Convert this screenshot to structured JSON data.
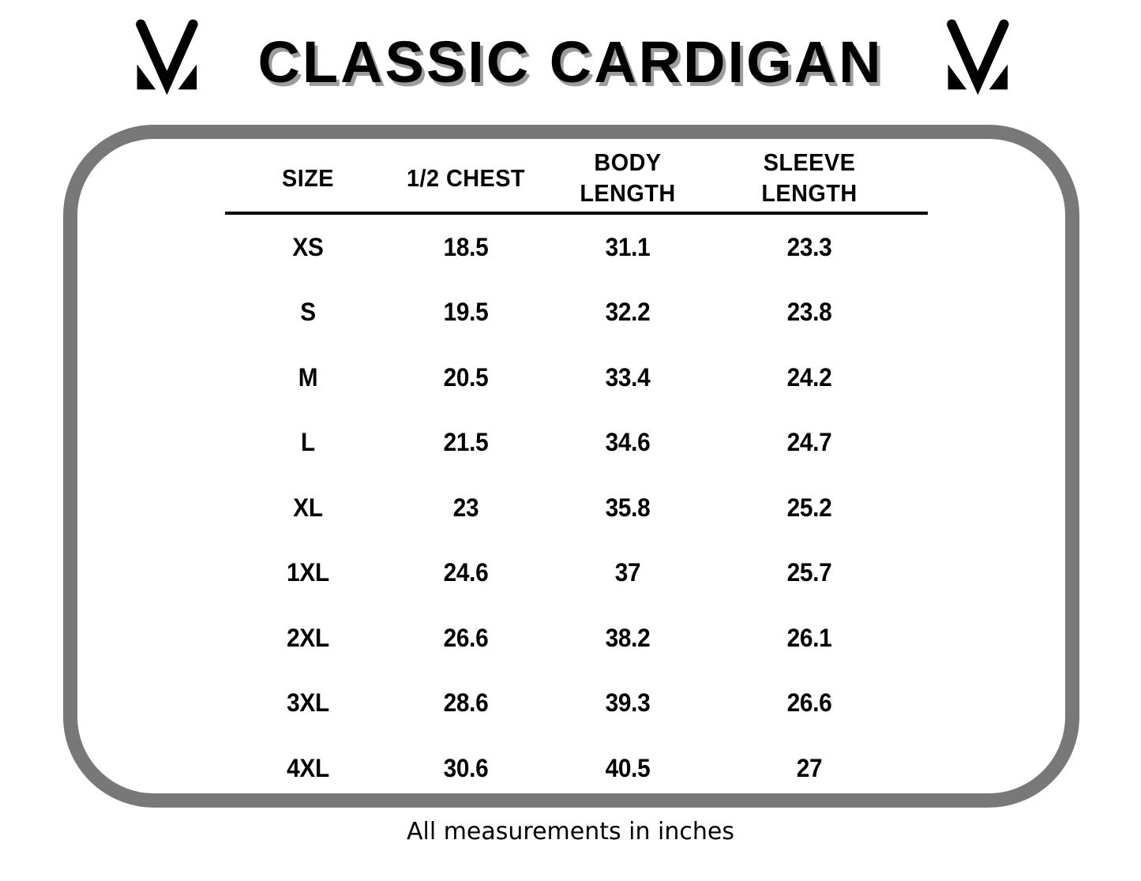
{
  "page": {
    "title": "CLASSIC CARDIGAN",
    "footer_note": "All measurements in inches"
  },
  "header": {
    "left_logo_icon": "mv-monogram",
    "right_logo_icon": "mv-monogram"
  },
  "chart_data": {
    "type": "table",
    "title": "CLASSIC CARDIGAN",
    "columns": [
      "SIZE",
      "1/2 CHEST",
      "BODY LENGTH",
      "SLEEVE LENGTH"
    ],
    "rows": [
      [
        "XS",
        "18.5",
        "31.1",
        "23.3"
      ],
      [
        "S",
        "19.5",
        "32.2",
        "23.8"
      ],
      [
        "M",
        "20.5",
        "33.4",
        "24.2"
      ],
      [
        "L",
        "21.5",
        "34.6",
        "24.7"
      ],
      [
        "XL",
        "23",
        "35.8",
        "25.2"
      ],
      [
        "1XL",
        "24.6",
        "37",
        "25.7"
      ],
      [
        "2XL",
        "26.6",
        "38.2",
        "26.1"
      ],
      [
        "3XL",
        "28.6",
        "39.3",
        "26.6"
      ],
      [
        "4XL",
        "30.6",
        "40.5",
        "27"
      ]
    ],
    "note": "All measurements in inches",
    "units": "inches"
  },
  "colors": {
    "panel_border_gray": "#787878",
    "title_shadow_gray": "#9c9c9c",
    "text_black": "#000000"
  }
}
